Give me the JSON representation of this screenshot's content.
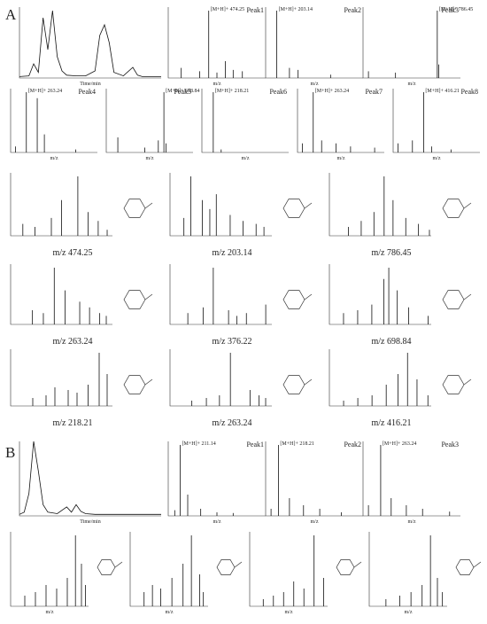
{
  "axis_label": "m/z",
  "time_label": "Time/min",
  "sections": [
    {
      "label": "A",
      "chromatogram": {
        "xlim": [
          0,
          30
        ],
        "ylim": [
          0,
          100
        ],
        "x": [
          0,
          2,
          3,
          4,
          5,
          6,
          7,
          8,
          9,
          10,
          12,
          14,
          16,
          17,
          18,
          19,
          20,
          22,
          24,
          25,
          26,
          28,
          30
        ],
        "values": [
          2,
          3,
          20,
          8,
          85,
          40,
          95,
          30,
          10,
          4,
          3,
          3,
          10,
          60,
          75,
          50,
          8,
          3,
          15,
          4,
          2,
          2,
          2
        ]
      },
      "spectra": [
        {
          "title": "Peak1",
          "annot": "[M+H]+ 474.25",
          "xlim": [
            100,
            1000
          ],
          "x": [
            220,
            390,
            474,
            550,
            627,
            700,
            785
          ],
          "values": [
            15,
            10,
            100,
            8,
            25,
            12,
            10
          ]
        },
        {
          "title": "Peak2",
          "annot": "[M+H]+ 203.14",
          "xlim": [
            100,
            1000
          ],
          "x": [
            203,
            320,
            400,
            700
          ],
          "values": [
            100,
            15,
            12,
            5
          ]
        },
        {
          "title": "Peak3",
          "annot": "[M+H]+ 786.45",
          "xlim": [
            100,
            1000
          ],
          "x": [
            150,
            400,
            786,
            800
          ],
          "values": [
            10,
            8,
            100,
            20
          ]
        },
        {
          "title": "Peak4",
          "annot": "[M+H]+ 263.24",
          "xlim": [
            100,
            1000
          ],
          "x": [
            150,
            263,
            376,
            450,
            775
          ],
          "values": [
            10,
            100,
            90,
            30,
            5
          ]
        },
        {
          "title": "Peak5",
          "annot": "[M+H]+ 698.84",
          "xlim": [
            100,
            1000
          ],
          "x": [
            220,
            500,
            640,
            698,
            720
          ],
          "values": [
            25,
            8,
            20,
            100,
            15
          ]
        },
        {
          "title": "Peak6",
          "annot": "[M+H]+ 218.21",
          "xlim": [
            100,
            1000
          ],
          "x": [
            218,
            300
          ],
          "values": [
            100,
            5
          ]
        },
        {
          "title": "Peak7",
          "annot": "[M+H]+ 263.24",
          "xlim": [
            100,
            1000
          ],
          "x": [
            150,
            263,
            350,
            500,
            650,
            900
          ],
          "values": [
            15,
            100,
            20,
            15,
            10,
            8
          ]
        },
        {
          "title": "Peak8",
          "annot": "[M+H]+ 416.21",
          "xlim": [
            100,
            1000
          ],
          "x": [
            150,
            300,
            416,
            500,
            700
          ],
          "values": [
            15,
            20,
            100,
            10,
            5
          ]
        }
      ],
      "msms": [
        {
          "caption": "m/z 474.25",
          "xlim": [
            0,
            500
          ],
          "x": [
            60,
            120,
            200,
            250,
            330,
            380,
            430,
            474
          ],
          "values": [
            20,
            15,
            30,
            60,
            100,
            40,
            25,
            10
          ]
        },
        {
          "caption": "m/z 203.14",
          "xlim": [
            0,
            220
          ],
          "x": [
            30,
            45,
            70,
            86,
            100,
            130,
            158,
            186,
            203
          ],
          "values": [
            30,
            100,
            60,
            45,
            70,
            35,
            25,
            20,
            15
          ]
        },
        {
          "caption": "m/z 786.45",
          "xlim": [
            0,
            800
          ],
          "x": [
            150,
            250,
            350,
            430,
            500,
            600,
            700,
            786
          ],
          "values": [
            15,
            25,
            40,
            100,
            60,
            30,
            20,
            10
          ]
        },
        {
          "caption": "m/z 263.24",
          "xlim": [
            0,
            280
          ],
          "x": [
            60,
            90,
            120,
            150,
            190,
            217,
            245,
            263
          ],
          "values": [
            25,
            20,
            100,
            60,
            40,
            30,
            20,
            15
          ]
        },
        {
          "caption": "m/z 376.22",
          "xlim": [
            0,
            400
          ],
          "x": [
            70,
            130,
            170,
            230,
            263,
            300,
            376
          ],
          "values": [
            20,
            30,
            100,
            25,
            15,
            20,
            35
          ]
        },
        {
          "caption": "m/z 698.84",
          "xlim": [
            0,
            720
          ],
          "x": [
            100,
            200,
            300,
            385,
            420,
            480,
            560,
            698
          ],
          "values": [
            20,
            25,
            35,
            80,
            100,
            60,
            30,
            15
          ]
        },
        {
          "caption": "m/z 218.21",
          "xlim": [
            0,
            230
          ],
          "x": [
            50,
            80,
            100,
            130,
            150,
            175,
            200,
            218
          ],
          "values": [
            15,
            20,
            35,
            30,
            25,
            40,
            100,
            60
          ]
        },
        {
          "caption": "m/z 263.24",
          "xlim": [
            0,
            280
          ],
          "x": [
            60,
            100,
            136,
            166,
            220,
            245,
            263
          ],
          "values": [
            10,
            15,
            20,
            100,
            30,
            20,
            15
          ]
        },
        {
          "caption": "m/z 416.21",
          "xlim": [
            0,
            430
          ],
          "x": [
            60,
            120,
            180,
            240,
            290,
            330,
            370,
            416
          ],
          "values": [
            10,
            15,
            20,
            40,
            60,
            100,
            50,
            20
          ]
        }
      ]
    },
    {
      "label": "B",
      "chromatogram": {
        "xlim": [
          0,
          30
        ],
        "ylim": [
          0,
          100
        ],
        "x": [
          0,
          1,
          2,
          3,
          4,
          5,
          6,
          8,
          10,
          11,
          12,
          13,
          14,
          16,
          20,
          25,
          30
        ],
        "values": [
          2,
          5,
          30,
          100,
          60,
          15,
          5,
          3,
          12,
          5,
          15,
          6,
          3,
          2,
          2,
          2,
          2
        ]
      },
      "spectra": [
        {
          "title": "Peak1",
          "annot": "[M+H]+ 211.14",
          "xlim": [
            100,
            1000
          ],
          "x": [
            160,
            211,
            280,
            400,
            550,
            700
          ],
          "values": [
            8,
            100,
            30,
            10,
            5,
            4
          ]
        },
        {
          "title": "Peak2",
          "annot": "[M+H]+ 218.21",
          "xlim": [
            100,
            1000
          ],
          "x": [
            150,
            218,
            320,
            450,
            600,
            800
          ],
          "values": [
            10,
            100,
            25,
            15,
            10,
            5
          ]
        },
        {
          "title": "Peak3",
          "annot": "[M+H]+ 263.24",
          "xlim": [
            100,
            1000
          ],
          "x": [
            150,
            263,
            360,
            500,
            650,
            900
          ],
          "values": [
            15,
            100,
            25,
            15,
            10,
            6
          ]
        }
      ],
      "msms": [
        {
          "xlim": [
            0,
            220
          ],
          "x": [
            40,
            70,
            100,
            130,
            160,
            183,
            200,
            211
          ],
          "values": [
            15,
            20,
            30,
            25,
            40,
            100,
            60,
            30
          ]
        },
        {
          "xlim": [
            0,
            280
          ],
          "x": [
            50,
            80,
            110,
            150,
            190,
            220,
            250,
            263
          ],
          "values": [
            20,
            30,
            25,
            40,
            60,
            100,
            45,
            20
          ]
        },
        {
          "xlim": [
            0,
            230
          ],
          "x": [
            40,
            70,
            100,
            130,
            160,
            190,
            218
          ],
          "values": [
            10,
            15,
            20,
            35,
            25,
            100,
            40
          ]
        },
        {
          "xlim": [
            0,
            280
          ],
          "x": [
            60,
            110,
            150,
            190,
            220,
            245,
            263
          ],
          "values": [
            10,
            15,
            20,
            30,
            100,
            40,
            20
          ]
        }
      ]
    }
  ]
}
